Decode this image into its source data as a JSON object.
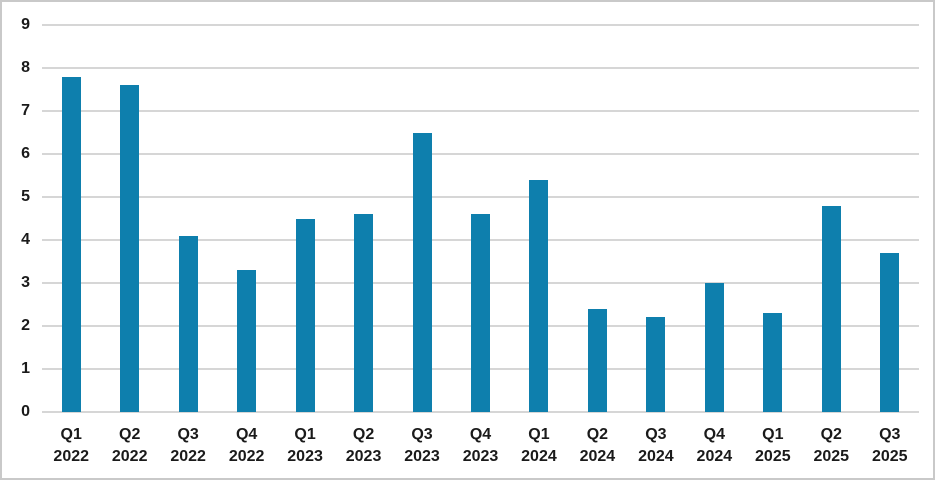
{
  "chart_data": {
    "type": "bar",
    "title": "",
    "xlabel": "",
    "ylabel": "",
    "categories": [
      "Q1 2022",
      "Q2 2022",
      "Q3 2022",
      "Q4 2022",
      "Q1 2023",
      "Q2 2023",
      "Q3 2023",
      "Q4 2023",
      "Q1 2024",
      "Q2 2024",
      "Q3 2024",
      "Q4 2024",
      "Q1 2025",
      "Q2 2025",
      "Q3 2025"
    ],
    "values": [
      7.8,
      7.6,
      4.1,
      3.3,
      4.5,
      4.6,
      6.5,
      4.6,
      5.4,
      2.4,
      2.2,
      3.0,
      2.3,
      4.8,
      3.7
    ],
    "ylim": [
      0,
      9
    ],
    "ytick_interval": 1,
    "ytick_labels": [
      "0",
      "1",
      "2",
      "3",
      "4",
      "5",
      "6",
      "7",
      "8",
      "9"
    ],
    "grid": true,
    "legend": false,
    "colors": {
      "bar": "#0E7FAD",
      "gridline": "#D6D6D6",
      "tick_label": "#1A1A1A",
      "frame_border": "#C9C9C9",
      "background": "#FFFFFF"
    }
  }
}
